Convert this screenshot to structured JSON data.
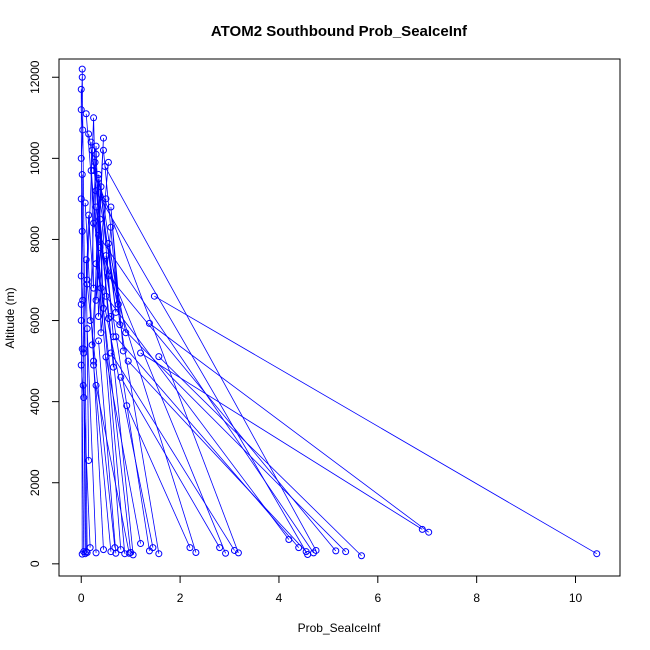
{
  "chart_data": {
    "type": "line",
    "title": "ATOM2 Southbound Prob_SeaIceInf",
    "xlabel": "Prob_SeaIceInf",
    "ylabel": "Altitude (m)",
    "xlim": [
      -0.45,
      10.9
    ],
    "ylim": [
      -300,
      12450
    ],
    "xticks": [
      "0",
      "2",
      "4",
      "6",
      "8",
      "10"
    ],
    "yticks": [
      "0",
      "2000",
      "4000",
      "6000",
      "8000",
      "10000",
      "12000"
    ],
    "grid": false,
    "color": "#0000ff",
    "series": [
      {
        "points": [
          [
            10.43,
            250
          ],
          [
            1.48,
            6600
          ]
        ]
      },
      {
        "points": [
          [
            7.03,
            780
          ],
          [
            1.38,
            5930
          ]
        ]
      },
      {
        "points": [
          [
            6.9,
            850
          ],
          [
            1.2,
            5200
          ]
        ]
      },
      {
        "points": [
          [
            5.67,
            200
          ],
          [
            1.57,
            5110
          ]
        ]
      },
      {
        "points": [
          [
            5.35,
            300
          ],
          [
            0.6,
            6100
          ]
        ]
      },
      {
        "points": [
          [
            5.15,
            320
          ],
          [
            0.55,
            7100
          ]
        ]
      },
      {
        "points": [
          [
            4.75,
            330
          ],
          [
            0.48,
            9800
          ]
        ]
      },
      {
        "points": [
          [
            4.7,
            270
          ],
          [
            0.35,
            8100
          ]
        ]
      },
      {
        "points": [
          [
            4.58,
            230
          ],
          [
            0.3,
            9200
          ]
        ]
      },
      {
        "points": [
          [
            4.55,
            300
          ],
          [
            0.95,
            5000
          ]
        ]
      },
      {
        "points": [
          [
            4.4,
            400
          ],
          [
            0.7,
            5600
          ]
        ]
      },
      {
        "points": [
          [
            4.2,
            600
          ],
          [
            0.5,
            6600
          ]
        ]
      },
      {
        "points": [
          [
            3.18,
            270
          ],
          [
            0.25,
            9700
          ]
        ]
      },
      {
        "points": [
          [
            3.1,
            330
          ],
          [
            0.6,
            5200
          ]
        ]
      },
      {
        "points": [
          [
            2.92,
            260
          ],
          [
            0.38,
            7800
          ]
        ]
      },
      {
        "points": [
          [
            2.8,
            400
          ],
          [
            0.8,
            4600
          ]
        ]
      },
      {
        "points": [
          [
            2.32,
            280
          ],
          [
            0.25,
            8400
          ]
        ]
      },
      {
        "points": [
          [
            2.2,
            400
          ],
          [
            0.92,
            3900
          ]
        ]
      },
      {
        "points": [
          [
            1.57,
            250
          ],
          [
            0.15,
            10600
          ]
        ]
      },
      {
        "points": [
          [
            1.45,
            400
          ],
          [
            0.3,
            7400
          ]
        ]
      },
      {
        "points": [
          [
            1.38,
            320
          ],
          [
            0.3,
            8800
          ]
        ]
      },
      {
        "points": [
          [
            1.2,
            500
          ],
          [
            0.5,
            5100
          ]
        ]
      },
      {
        "points": [
          [
            1.05,
            220
          ],
          [
            0.22,
            10200
          ]
        ]
      },
      {
        "points": [
          [
            1.0,
            280
          ],
          [
            0.4,
            6800
          ]
        ]
      },
      {
        "points": [
          [
            0.97,
            260
          ],
          [
            0.3,
            4400
          ]
        ]
      },
      {
        "points": [
          [
            0.88,
            250
          ],
          [
            0.2,
            9700
          ]
        ]
      },
      {
        "points": [
          [
            0.8,
            350
          ],
          [
            0.1,
            11100
          ]
        ]
      },
      {
        "points": [
          [
            0.7,
            260
          ],
          [
            0.35,
            5500
          ]
        ]
      },
      {
        "points": [
          [
            0.68,
            400
          ],
          [
            0.12,
            6900
          ]
        ]
      },
      {
        "points": [
          [
            0.6,
            300
          ],
          [
            0.25,
            4900
          ]
        ]
      },
      {
        "points": [
          [
            0.45,
            350
          ],
          [
            0.08,
            8900
          ]
        ]
      },
      {
        "points": [
          [
            0.3,
            270
          ],
          [
            0.12,
            5800
          ]
        ]
      },
      {
        "points": [
          [
            0.18,
            400
          ],
          [
            0.04,
            4400
          ]
        ]
      },
      {
        "points": [
          [
            0.12,
            280
          ],
          [
            0.02,
            12200
          ]
        ]
      },
      {
        "points": [
          [
            0.02,
            240
          ],
          [
            0.0,
            11700
          ]
        ]
      },
      {
        "points": [
          [
            0.08,
            250
          ],
          [
            0.02,
            9600
          ]
        ]
      },
      {
        "points": [
          [
            0.05,
            300
          ],
          [
            0.0,
            6400
          ]
        ]
      },
      {
        "points": [
          [
            0.1,
            300
          ],
          [
            0.05,
            5300
          ]
        ]
      },
      {
        "points": [
          [
            0.15,
            2550
          ],
          [
            0.1,
            7500
          ]
        ]
      },
      {
        "points": [
          [
            0.22,
            5400
          ],
          [
            0.45,
            10500
          ],
          [
            0.3,
            6500
          ],
          [
            0.55,
            9900
          ]
        ]
      },
      {
        "points": [
          [
            0.18,
            6000
          ],
          [
            0.3,
            10300
          ],
          [
            0.4,
            5700
          ],
          [
            0.6,
            8300
          ]
        ]
      },
      {
        "points": [
          [
            0.12,
            7000
          ],
          [
            0.25,
            11000
          ],
          [
            0.35,
            6100
          ],
          [
            0.5,
            9000
          ]
        ]
      },
      {
        "points": [
          [
            0.25,
            5000
          ],
          [
            0.35,
            9500
          ],
          [
            0.45,
            6300
          ],
          [
            0.3,
            10100
          ]
        ]
      },
      {
        "points": [
          [
            0.75,
            6400
          ],
          [
            0.4,
            9300
          ],
          [
            0.65,
            5600
          ],
          [
            0.5,
            7600
          ]
        ]
      },
      {
        "points": [
          [
            0.05,
            5200
          ],
          [
            0.15,
            8600
          ],
          [
            0.25,
            6800
          ],
          [
            0.2,
            10400
          ]
        ]
      },
      {
        "points": [
          [
            0.9,
            5700
          ],
          [
            0.55,
            7900
          ],
          [
            0.7,
            6200
          ],
          [
            0.35,
            9600
          ]
        ]
      },
      {
        "points": [
          [
            0.85,
            5250
          ],
          [
            0.6,
            8800
          ],
          [
            0.78,
            5900
          ],
          [
            0.45,
            10200
          ]
        ]
      },
      {
        "points": [
          [
            0.65,
            4850
          ],
          [
            0.38,
            8500
          ],
          [
            0.55,
            6050
          ],
          [
            0.28,
            9900
          ]
        ]
      },
      {
        "points": [
          [
            0.02,
            12000
          ],
          [
            0.0,
            11200
          ],
          [
            0.03,
            10700
          ],
          [
            0.0,
            10000
          ]
        ]
      },
      {
        "points": [
          [
            0.0,
            9000
          ],
          [
            0.02,
            8200
          ],
          [
            0.0,
            7100
          ],
          [
            0.03,
            6500
          ]
        ]
      },
      {
        "points": [
          [
            0.0,
            6000
          ],
          [
            0.02,
            5300
          ],
          [
            0.0,
            4900
          ],
          [
            0.05,
            4100
          ]
        ]
      }
    ]
  }
}
